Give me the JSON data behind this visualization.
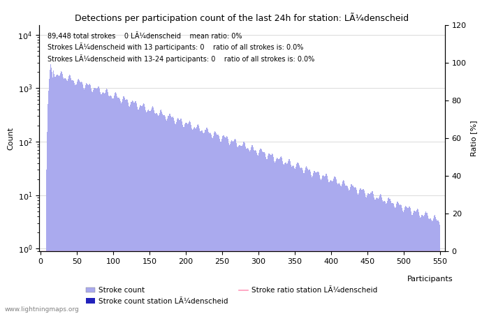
{
  "title": "Detections per participation count of the last 24h for station: LÃ¼denscheid",
  "annotation_line1": "89,448 total strokes    0 LÃ¼denscheid    mean ratio: 0%",
  "annotation_line2": "Strokes LÃ¼denscheid with 13 participants: 0    ratio of all strokes is: 0.0%",
  "annotation_line3": "Strokes LÃ¼denscheid with 13-24 participants: 0    ratio of all strokes is: 0.0%",
  "xlabel": "Participants",
  "ylabel_left": "Count",
  "ylabel_right": "Ratio [%]",
  "xlim": [
    0,
    550
  ],
  "ylim_right": [
    0,
    120
  ],
  "bar_color": "#aaaaee",
  "bar_color_station": "#2222bb",
  "ratio_color": "#ff99bb",
  "legend_entries": [
    "Stroke count",
    "Stroke count station LÃ¼denscheid",
    "Stroke ratio station LÃ¼denscheid"
  ],
  "watermark": "www.lightningmaps.org",
  "annotation_fontsize": 7,
  "tick_label_fontsize": 8,
  "title_fontsize": 9
}
